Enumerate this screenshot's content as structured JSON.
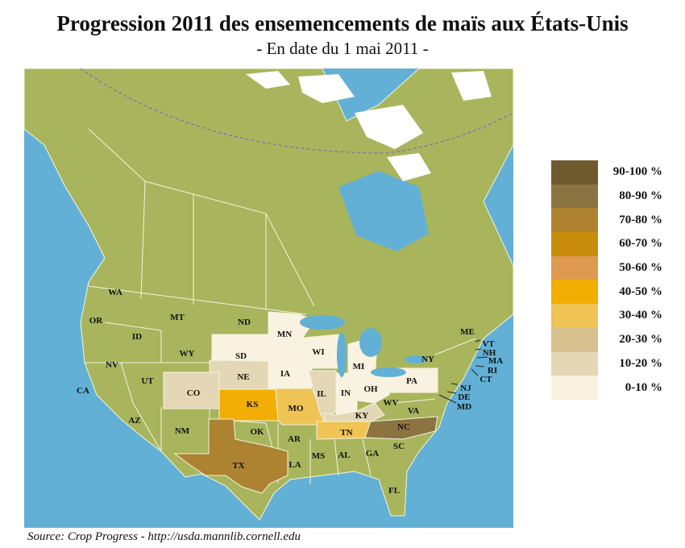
{
  "title": "Progression 2011 des ensemencements de maïs aux États-Unis",
  "subtitle": "- En date du 1 mai 2011 -",
  "source": "Source: Crop Progress - http://usda.mannlib.cornell.edu",
  "colors": {
    "ocean": "#63b0d6",
    "land": "#a8b55c",
    "snow": "#ffffff",
    "border": "#f4f4e0"
  },
  "legend": [
    {
      "label": "90-100 %",
      "color": "#6e5a2c"
    },
    {
      "label": "80-90 %",
      "color": "#8c7442"
    },
    {
      "label": "70-80 %",
      "color": "#ad8332"
    },
    {
      "label": "60-70 %",
      "color": "#c78c0a"
    },
    {
      "label": "50-60 %",
      "color": "#dd9a50"
    },
    {
      "label": "40-50 %",
      "color": "#f2ae02"
    },
    {
      "label": "30-40 %",
      "color": "#f0c355"
    },
    {
      "label": "20-30 %",
      "color": "#d5c08e"
    },
    {
      "label": "10-20 %",
      "color": "#e4d7b5"
    },
    {
      "label": "0-10 %",
      "color": "#faf2e0"
    }
  ],
  "states": {
    "WA": "",
    "OR": "",
    "ID": "",
    "MT": "",
    "ND": "",
    "WY": "",
    "NV": "",
    "UT": "",
    "CA": "",
    "CO": "10-20 %",
    "AZ": "",
    "NM": "",
    "SD": "0-10 %",
    "NE": "10-20 %",
    "KS": "40-50 %",
    "MN": "0-10 %",
    "IA": "0-10 %",
    "WI": "0-10 %",
    "MI": "0-10 %",
    "IL": "10-20 %",
    "IN": "0-10 %",
    "OH": "0-10 %",
    "PA": "0-10 %",
    "MO": "30-40 %",
    "KY": "10-20 %",
    "TN": "30-40 %",
    "OK": "",
    "AR": "",
    "TX": "70-80 %",
    "LA": "",
    "MS": "",
    "AL": "",
    "GA": "",
    "SC": "",
    "NC": "80-90 %",
    "WV": "",
    "VA": "",
    "NY": "",
    "FL": "",
    "ME": "",
    "VT": "",
    "NH": "",
    "MA": "",
    "RI": "",
    "CT": "",
    "NJ": "",
    "DE": "",
    "MD": ""
  }
}
